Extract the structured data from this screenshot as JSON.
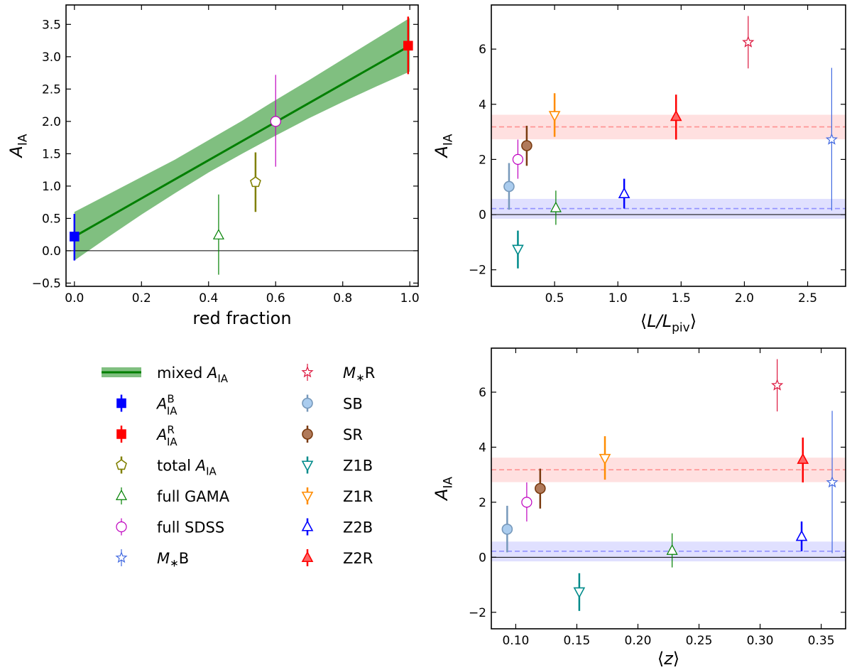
{
  "chart_data": [
    {
      "id": "left",
      "type": "scatter",
      "xlabel": "red fraction",
      "ylabel": "A_IA",
      "xlim": [
        -0.025,
        1.025
      ],
      "ylim": [
        -0.55,
        3.8
      ],
      "xticks": [
        0.0,
        0.2,
        0.4,
        0.6,
        0.8,
        1.0
      ],
      "xtick_labels": [
        "0.0",
        "0.2",
        "0.4",
        "0.6",
        "0.8",
        "1.0"
      ],
      "yticks": [
        -0.5,
        0.0,
        0.5,
        1.0,
        1.5,
        2.0,
        2.5,
        3.0,
        3.5
      ],
      "ytick_labels": [
        "−0.5",
        "0.0",
        "0.5",
        "1.0",
        "1.5",
        "2.0",
        "2.5",
        "3.0",
        "3.5"
      ],
      "zero_line": true,
      "mixed_line": {
        "x": [
          0.0,
          1.0
        ],
        "y": [
          0.22,
          3.17
        ],
        "color": "#007f00"
      },
      "mixed_band": {
        "x": [
          0.0,
          0.1,
          0.2,
          0.3,
          0.4,
          0.5,
          0.6,
          0.7,
          0.8,
          0.9,
          1.0
        ],
        "lower": [
          -0.15,
          0.21,
          0.56,
          0.89,
          1.21,
          1.5,
          1.78,
          2.05,
          2.3,
          2.54,
          2.77
        ],
        "upper": [
          0.6,
          0.87,
          1.14,
          1.41,
          1.71,
          2.01,
          2.33,
          2.64,
          2.96,
          3.28,
          3.6
        ],
        "color": "#55aa55"
      },
      "points": [
        {
          "name": "A_IA^B",
          "x": 0.0,
          "y": 0.22,
          "lo": -0.15,
          "hi": 0.57,
          "marker": "square",
          "color": "#0000ff",
          "filled": true,
          "thick": true
        },
        {
          "name": "A_IA^R",
          "x": 0.995,
          "y": 3.17,
          "lo": 2.73,
          "hi": 3.62,
          "marker": "square",
          "color": "#ff0000",
          "filled": true,
          "thick": true
        },
        {
          "name": "total A_IA",
          "x": 0.54,
          "y": 1.06,
          "lo": 0.6,
          "hi": 1.52,
          "marker": "pentagon",
          "color": "#808000",
          "filled": false,
          "thick": true
        },
        {
          "name": "full GAMA",
          "x": 0.43,
          "y": 0.24,
          "lo": -0.37,
          "hi": 0.87,
          "marker": "triangle-up",
          "color": "#008000",
          "filled": false,
          "thick": false
        },
        {
          "name": "full SDSS",
          "x": 0.6,
          "y": 2.0,
          "lo": 1.3,
          "hi": 2.72,
          "marker": "circle",
          "color": "#bf00bf",
          "filled": false,
          "thick": false
        }
      ]
    },
    {
      "id": "top-right",
      "type": "scatter",
      "xlabel": "⟨L/L_piv⟩",
      "ylabel": "A_IA",
      "xlim": [
        0.0,
        2.8
      ],
      "ylim": [
        -2.6,
        7.6
      ],
      "xticks": [
        0.5,
        1.0,
        1.5,
        2.0,
        2.5
      ],
      "xtick_labels": [
        "0.5",
        "1.0",
        "1.5",
        "2.0",
        "2.5"
      ],
      "yticks": [
        -2,
        0,
        2,
        4,
        6
      ],
      "ytick_labels": [
        "−2",
        "0",
        "2",
        "4",
        "6"
      ],
      "zero_line": true,
      "bands": [
        {
          "center": 3.18,
          "lo": 2.73,
          "hi": 3.62,
          "color": "#ff0000"
        },
        {
          "center": 0.22,
          "lo": -0.15,
          "hi": 0.57,
          "color": "#0000ff"
        }
      ],
      "points": [
        {
          "name": "SB",
          "x": 0.14,
          "y": 1.02,
          "lo": 0.18,
          "hi": 1.87,
          "marker": "circle",
          "color": "#7799bb",
          "fill": "#aaccee",
          "filled": true,
          "thick": true
        },
        {
          "name": "full SDSS",
          "x": 0.21,
          "y": 2.0,
          "lo": 1.3,
          "hi": 2.72,
          "marker": "circle",
          "color": "#bf00bf",
          "filled": false,
          "thick": false
        },
        {
          "name": "SR",
          "x": 0.28,
          "y": 2.5,
          "lo": 1.77,
          "hi": 3.22,
          "marker": "circle",
          "color": "#7a3b10",
          "fill": "#b07a5a",
          "filled": true,
          "thick": true
        },
        {
          "name": "Z1B",
          "x": 0.21,
          "y": -1.25,
          "lo": -1.95,
          "hi": -0.58,
          "marker": "triangle-down",
          "color": "#008b8b",
          "filled": false,
          "thick": true
        },
        {
          "name": "Z1R",
          "x": 0.5,
          "y": 3.6,
          "lo": 2.82,
          "hi": 4.4,
          "marker": "triangle-down",
          "color": "#ff8c00",
          "filled": false,
          "thick": true
        },
        {
          "name": "full GAMA",
          "x": 0.51,
          "y": 0.24,
          "lo": -0.37,
          "hi": 0.87,
          "marker": "triangle-up",
          "color": "#008000",
          "filled": false,
          "thick": false
        },
        {
          "name": "Z2B",
          "x": 1.05,
          "y": 0.75,
          "lo": 0.22,
          "hi": 1.3,
          "marker": "triangle-up",
          "color": "#0000ff",
          "filled": false,
          "thick": true
        },
        {
          "name": "Z2R",
          "x": 1.46,
          "y": 3.55,
          "lo": 2.72,
          "hi": 4.35,
          "marker": "triangle-up",
          "color": "#ff0000",
          "fill": "#ff6666",
          "filled": true,
          "thick": true
        },
        {
          "name": "M*R",
          "x": 2.03,
          "y": 6.25,
          "lo": 5.3,
          "hi": 7.2,
          "marker": "star",
          "color": "#dc143c",
          "filled": false,
          "thick": false
        },
        {
          "name": "M*B",
          "x": 2.69,
          "y": 2.72,
          "lo": 0.15,
          "hi": 5.32,
          "marker": "star",
          "color": "#4169e1",
          "filled": false,
          "thick": false
        }
      ]
    },
    {
      "id": "bottom-right",
      "type": "scatter",
      "xlabel": "⟨z⟩",
      "ylabel": "A_IA",
      "xlim": [
        0.08,
        0.37
      ],
      "ylim": [
        -2.6,
        7.6
      ],
      "xticks": [
        0.1,
        0.15,
        0.2,
        0.25,
        0.3,
        0.35
      ],
      "xtick_labels": [
        "0.10",
        "0.15",
        "0.20",
        "0.25",
        "0.30",
        "0.35"
      ],
      "yticks": [
        -2,
        0,
        2,
        4,
        6
      ],
      "ytick_labels": [
        "−2",
        "0",
        "2",
        "4",
        "6"
      ],
      "zero_line": true,
      "bands": [
        {
          "center": 3.18,
          "lo": 2.73,
          "hi": 3.62,
          "color": "#ff0000"
        },
        {
          "center": 0.22,
          "lo": -0.15,
          "hi": 0.57,
          "color": "#0000ff"
        }
      ],
      "points": [
        {
          "name": "SB",
          "x": 0.093,
          "y": 1.02,
          "lo": 0.18,
          "hi": 1.87,
          "marker": "circle",
          "color": "#7799bb",
          "fill": "#aaccee",
          "filled": true,
          "thick": true
        },
        {
          "name": "full SDSS",
          "x": 0.109,
          "y": 2.0,
          "lo": 1.3,
          "hi": 2.72,
          "marker": "circle",
          "color": "#bf00bf",
          "filled": false,
          "thick": false
        },
        {
          "name": "SR",
          "x": 0.12,
          "y": 2.5,
          "lo": 1.77,
          "hi": 3.22,
          "marker": "circle",
          "color": "#7a3b10",
          "fill": "#b07a5a",
          "filled": true,
          "thick": true
        },
        {
          "name": "Z1B",
          "x": 0.152,
          "y": -1.25,
          "lo": -1.95,
          "hi": -0.58,
          "marker": "triangle-down",
          "color": "#008b8b",
          "filled": false,
          "thick": true
        },
        {
          "name": "Z1R",
          "x": 0.173,
          "y": 3.6,
          "lo": 2.82,
          "hi": 4.4,
          "marker": "triangle-down",
          "color": "#ff8c00",
          "filled": false,
          "thick": true
        },
        {
          "name": "full GAMA",
          "x": 0.228,
          "y": 0.24,
          "lo": -0.37,
          "hi": 0.87,
          "marker": "triangle-up",
          "color": "#008000",
          "filled": false,
          "thick": false
        },
        {
          "name": "M*R",
          "x": 0.314,
          "y": 6.25,
          "lo": 5.3,
          "hi": 7.2,
          "marker": "star",
          "color": "#dc143c",
          "filled": false,
          "thick": false
        },
        {
          "name": "Z2B",
          "x": 0.334,
          "y": 0.75,
          "lo": 0.22,
          "hi": 1.3,
          "marker": "triangle-up",
          "color": "#0000ff",
          "filled": false,
          "thick": true
        },
        {
          "name": "Z2R",
          "x": 0.335,
          "y": 3.55,
          "lo": 2.72,
          "hi": 4.35,
          "marker": "triangle-up",
          "color": "#ff0000",
          "fill": "#ff6666",
          "filled": true,
          "thick": true
        },
        {
          "name": "M*B",
          "x": 0.359,
          "y": 2.72,
          "lo": 0.15,
          "hi": 5.32,
          "marker": "star",
          "color": "#4169e1",
          "filled": false,
          "thick": false
        }
      ]
    }
  ],
  "legend": {
    "columns": [
      [
        {
          "label": "mixed A_IA",
          "marker": "band-line",
          "color": "#007f00",
          "fill": "#55aa55"
        },
        {
          "label": "A_IA^B",
          "marker": "square",
          "color": "#0000ff",
          "filled": true,
          "thick": true
        },
        {
          "label": "A_IA^R",
          "marker": "square",
          "color": "#ff0000",
          "filled": true,
          "thick": true
        },
        {
          "label": "total A_IA",
          "marker": "pentagon",
          "color": "#808000",
          "filled": false,
          "thick": true
        },
        {
          "label": "full GAMA",
          "marker": "triangle-up",
          "color": "#008000",
          "filled": false,
          "thick": false
        },
        {
          "label": "full SDSS",
          "marker": "circle",
          "color": "#bf00bf",
          "filled": false,
          "thick": false
        },
        {
          "label": "M*B",
          "marker": "star",
          "color": "#4169e1",
          "filled": false,
          "thick": false
        }
      ],
      [
        {
          "label": "M*R",
          "marker": "star",
          "color": "#dc143c",
          "filled": false,
          "thick": false
        },
        {
          "label": "SB",
          "marker": "circle",
          "color": "#7799bb",
          "fill": "#aaccee",
          "filled": true,
          "thick": true
        },
        {
          "label": "SR",
          "marker": "circle",
          "color": "#7a3b10",
          "fill": "#b07a5a",
          "filled": true,
          "thick": true
        },
        {
          "label": "Z1B",
          "marker": "triangle-down",
          "color": "#008b8b",
          "filled": false,
          "thick": true
        },
        {
          "label": "Z1R",
          "marker": "triangle-down",
          "color": "#ff8c00",
          "filled": false,
          "thick": true
        },
        {
          "label": "Z2B",
          "marker": "triangle-up",
          "color": "#0000ff",
          "filled": false,
          "thick": true
        },
        {
          "label": "Z2R",
          "marker": "triangle-up",
          "color": "#ff0000",
          "fill": "#ff6666",
          "filled": true,
          "thick": true
        }
      ]
    ]
  }
}
